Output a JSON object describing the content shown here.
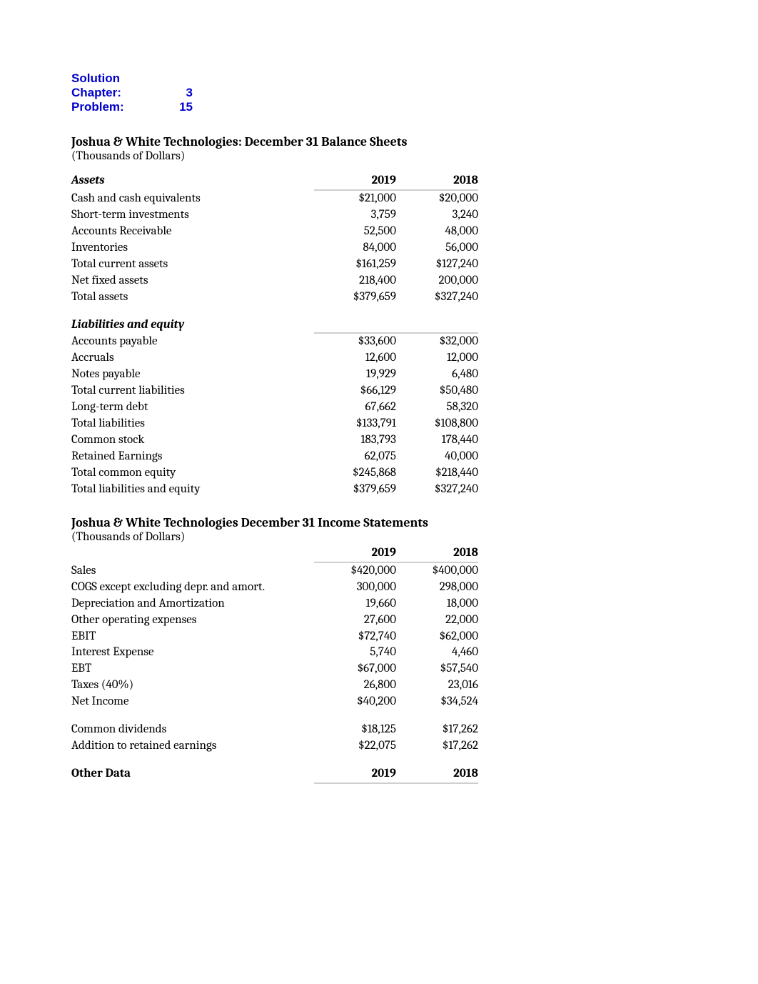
{
  "header": {
    "solution_label": "Solution",
    "chapter_label": "Chapter:",
    "chapter_value": "3",
    "problem_label": "Problem:",
    "problem_value": "15"
  },
  "colors": {
    "link_blue": "#0000cc",
    "text": "#000000",
    "header_underline": "#cfcfcf",
    "background": "#ffffff"
  },
  "typography": {
    "body_family": "Cambria / Georgia / serif",
    "header_family": "Arial / sans-serif",
    "body_size_pt": 12,
    "title_size_pt": 13
  },
  "balance_sheet": {
    "title": "Joshua & White Technologies: December 31 Balance Sheets",
    "subtitle": "(Thousands of Dollars)",
    "year_cols": [
      "2019",
      "2018"
    ],
    "assets_header": "Assets",
    "liab_header": "Liabilities and equity",
    "assets_rows": [
      {
        "label": "Cash and cash equivalents",
        "indent": 0,
        "v": [
          "$21,000",
          "$20,000"
        ]
      },
      {
        "label": "Short-term investments",
        "indent": 0,
        "v": [
          "3,759",
          "3,240"
        ]
      },
      {
        "label": "Accounts Receivable",
        "indent": 0,
        "v": [
          "52,500",
          "48,000"
        ]
      },
      {
        "label": "Inventories",
        "indent": 0,
        "v": [
          "84,000",
          "56,000"
        ]
      },
      {
        "label": "Total current assets",
        "indent": 1,
        "v": [
          "$161,259",
          "$127,240"
        ]
      },
      {
        "label": "Net fixed assets",
        "indent": 1,
        "v": [
          "218,400",
          "200,000"
        ]
      },
      {
        "label": "Total assets",
        "indent": 0,
        "v": [
          "$379,659",
          "$327,240"
        ]
      }
    ],
    "liab_rows": [
      {
        "label": "Accounts payable",
        "indent": 0,
        "v": [
          "$33,600",
          "$32,000"
        ]
      },
      {
        "label": "Accruals",
        "indent": 0,
        "v": [
          "12,600",
          "12,000"
        ]
      },
      {
        "label": "Notes payable",
        "indent": 0,
        "v": [
          "19,929",
          "6,480"
        ]
      },
      {
        "label": "Total current liabilities",
        "indent": 1,
        "v": [
          "$66,129",
          "$50,480"
        ]
      },
      {
        "label": "Long-term debt",
        "indent": 0,
        "v": [
          "67,662",
          "58,320"
        ]
      },
      {
        "label": "Total liabilities",
        "indent": 1,
        "v": [
          "$133,791",
          "$108,800"
        ]
      },
      {
        "label": "Common stock",
        "indent": 0,
        "v": [
          "183,793",
          "178,440"
        ]
      },
      {
        "label": "Retained Earnings",
        "indent": 0,
        "v": [
          "62,075",
          "40,000"
        ]
      },
      {
        "label": "Total common equity",
        "indent": 1,
        "v": [
          "$245,868",
          "$218,440"
        ]
      },
      {
        "label": "Total liabilities and equity",
        "indent": 0,
        "v": [
          "$379,659",
          "$327,240"
        ]
      }
    ]
  },
  "income_statement": {
    "title": "Joshua & White Technologies December 31 Income Statements",
    "subtitle": "(Thousands of Dollars)",
    "year_cols": [
      "2019",
      "2018"
    ],
    "rows": [
      {
        "label": "Sales",
        "indent": 0,
        "v": [
          "$420,000",
          "$400,000"
        ]
      },
      {
        "label": "COGS except excluding depr. and amort.",
        "indent": 0,
        "v": [
          "300,000",
          "298,000"
        ]
      },
      {
        "label": "Depreciation and Amortization",
        "indent": 0,
        "v": [
          "19,660",
          "18,000"
        ]
      },
      {
        "label": "Other operating expenses",
        "indent": 0,
        "v": [
          "27,600",
          "22,000"
        ]
      },
      {
        "label": "EBIT",
        "indent": 1,
        "v": [
          "$72,740",
          "$62,000"
        ]
      },
      {
        "label": "Interest Expense",
        "indent": 0,
        "v": [
          "5,740",
          "4,460"
        ]
      },
      {
        "label": "EBT",
        "indent": 1,
        "v": [
          "$67,000",
          "$57,540"
        ]
      },
      {
        "label": "Taxes (40%)",
        "indent": 0,
        "v": [
          "26,800",
          "23,016"
        ]
      },
      {
        "label": "Net Income",
        "indent": 1,
        "v": [
          "$40,200",
          "$34,524"
        ]
      }
    ],
    "extra_rows": [
      {
        "label": "Common dividends",
        "indent": 0,
        "v": [
          "$18,125",
          "$17,262"
        ]
      },
      {
        "label": "Addition to retained earnings",
        "indent": 0,
        "v": [
          "$22,075",
          "$17,262"
        ]
      }
    ]
  },
  "other_data": {
    "label": "Other Data",
    "year_cols": [
      "2019",
      "2018"
    ]
  }
}
